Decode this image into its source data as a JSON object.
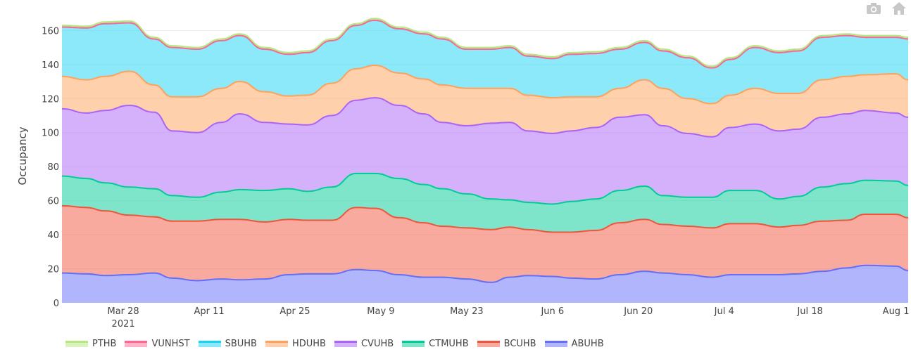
{
  "chart_data": {
    "type": "area",
    "stacked": true,
    "title": "",
    "xlabel": "",
    "ylabel": "Occupancy",
    "ylim": [
      0,
      168
    ],
    "xlim": [
      "2021-03-18",
      "2021-08-03"
    ],
    "grid": true,
    "legend_position": "bottom",
    "y_ticks": [
      "0",
      "20",
      "40",
      "60",
      "80",
      "100",
      "120",
      "140",
      "160"
    ],
    "x_ticks": [
      {
        "date": "2021-03-28",
        "label": "Mar 28",
        "sub": "2021"
      },
      {
        "date": "2021-04-11",
        "label": "Apr 11"
      },
      {
        "date": "2021-04-25",
        "label": "Apr 25"
      },
      {
        "date": "2021-05-09",
        "label": "May 9"
      },
      {
        "date": "2021-05-23",
        "label": "May 23"
      },
      {
        "date": "2021-06-06",
        "label": "Jun 6"
      },
      {
        "date": "2021-06-20",
        "label": "Jun 20"
      },
      {
        "date": "2021-07-04",
        "label": "Jul 4"
      },
      {
        "date": "2021-07-18",
        "label": "Jul 18"
      },
      {
        "date": "2021-08-01",
        "label": "Aug 1"
      }
    ],
    "x": [
      "2021-03-18",
      "2021-03-22",
      "2021-03-25",
      "2021-03-29",
      "2021-04-02",
      "2021-04-05",
      "2021-04-09",
      "2021-04-13",
      "2021-04-16",
      "2021-04-20",
      "2021-04-24",
      "2021-04-27",
      "2021-05-01",
      "2021-05-05",
      "2021-05-08",
      "2021-05-12",
      "2021-05-16",
      "2021-05-19",
      "2021-05-23",
      "2021-05-27",
      "2021-05-30",
      "2021-06-02",
      "2021-06-06",
      "2021-06-09",
      "2021-06-13",
      "2021-06-17",
      "2021-06-21",
      "2021-06-24",
      "2021-06-28",
      "2021-07-02",
      "2021-07-05",
      "2021-07-09",
      "2021-07-13",
      "2021-07-16",
      "2021-07-20",
      "2021-07-24",
      "2021-07-27",
      "2021-08-01",
      "2021-08-03"
    ],
    "series": [
      {
        "name": "ABUHB",
        "color": "#636efa",
        "values": [
          17.5,
          17,
          16,
          16.5,
          17.5,
          14.5,
          13,
          14,
          13.5,
          14,
          16.5,
          17,
          17,
          19.5,
          19,
          16.5,
          15,
          15,
          14,
          12,
          15,
          16,
          15.5,
          14.5,
          14,
          16.5,
          18.5,
          17.5,
          16.5,
          15,
          16.5,
          16.5,
          16.5,
          17,
          18.5,
          20.5,
          22,
          21.5,
          19
        ]
      },
      {
        "name": "BCUHB",
        "color": "#EF553B",
        "values": [
          39.5,
          39,
          38,
          35,
          33,
          33.5,
          35,
          35,
          35.5,
          33.5,
          32.5,
          31.5,
          31.5,
          36.5,
          36.5,
          33.5,
          32,
          30,
          30,
          31,
          29.5,
          27,
          26,
          27,
          28.5,
          30.5,
          30.5,
          28.5,
          28.5,
          29,
          30,
          30,
          28,
          28.5,
          29.5,
          28,
          30,
          30.5,
          31
        ]
      },
      {
        "name": "CTMUHB",
        "color": "#00cc96",
        "values": [
          17.5,
          17,
          16.5,
          16.5,
          16.5,
          15,
          14,
          16,
          17.5,
          18.5,
          18,
          17,
          19.5,
          20,
          20.5,
          23,
          22.5,
          22,
          20,
          18,
          16,
          16,
          16.5,
          18,
          18.5,
          19,
          19.5,
          17,
          17,
          18,
          19.5,
          19.5,
          16.5,
          17,
          20,
          21.5,
          20,
          19.5,
          19
        ]
      },
      {
        "name": "CVUHB",
        "color": "#ab63fa",
        "values": [
          39.5,
          38.5,
          42.5,
          48,
          45,
          38,
          38,
          41,
          44.5,
          40,
          38,
          39,
          42,
          43,
          44.5,
          43,
          41.5,
          39,
          40,
          44.5,
          45.5,
          42,
          41.5,
          41.5,
          42,
          43,
          42,
          41,
          37.5,
          35.5,
          37,
          39,
          40,
          39.5,
          41,
          41,
          41,
          40,
          40
        ]
      },
      {
        "name": "HDUHB",
        "color": "#FFA15A",
        "values": [
          19,
          19.5,
          20,
          20,
          16,
          20,
          21,
          20,
          19,
          18,
          16.5,
          17.5,
          19,
          18.5,
          19,
          19,
          20.5,
          22,
          22,
          20.5,
          20,
          21,
          21,
          20,
          18,
          17,
          20.5,
          22,
          20.5,
          19.5,
          19,
          21,
          22,
          21,
          22,
          22,
          21,
          23,
          22
        ]
      },
      {
        "name": "SBUHB",
        "color": "#19d3f3",
        "values": [
          29,
          30.5,
          31,
          28.5,
          27,
          29,
          28,
          28,
          27,
          25,
          24.5,
          25,
          25,
          25.5,
          26.5,
          26,
          26.5,
          27,
          23,
          23,
          24,
          23,
          23,
          25,
          25.5,
          23,
          22,
          22,
          24,
          21,
          21,
          24,
          24,
          25,
          25,
          24,
          22,
          21.5,
          24
        ]
      },
      {
        "name": "VUNHST",
        "color": "#FF6692",
        "values": [
          0,
          0,
          0,
          0,
          0,
          0,
          0,
          0,
          0,
          0,
          0,
          0,
          0,
          0,
          0,
          0,
          0,
          0,
          0,
          0,
          0,
          0,
          0,
          0,
          0,
          0,
          0,
          0,
          0,
          0,
          0,
          0,
          0,
          0,
          0,
          0,
          0,
          0,
          0
        ]
      },
      {
        "name": "PTHB",
        "color": "#B6E880",
        "values": [
          1,
          1,
          1,
          1,
          1,
          1,
          1,
          1,
          1,
          1,
          1,
          1,
          1,
          1,
          1,
          1,
          1,
          1,
          1,
          1,
          1,
          1,
          1,
          1,
          1,
          1,
          1,
          1,
          1,
          1,
          1,
          1,
          1,
          1,
          1,
          1,
          1,
          1,
          1
        ]
      }
    ],
    "legend_order": [
      "PTHB",
      "VUNHST",
      "SBUHB",
      "HDUHB",
      "CVUHB",
      "CTMUHB",
      "BCUHB",
      "ABUHB"
    ]
  },
  "modebar": {
    "camera_icon": "camera-icon",
    "home_icon": "home-icon"
  }
}
